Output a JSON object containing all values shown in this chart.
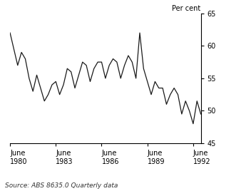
{
  "title": "",
  "ylabel": "Per cent",
  "source": "Source: ABS 8635.0 Quarterly data",
  "ylim": [
    45,
    65
  ],
  "yticks": [
    45,
    50,
    55,
    60,
    65
  ],
  "x_tick_positions": [
    0,
    12,
    24,
    36,
    48
  ],
  "x_tick_labels": [
    "June\n1980",
    "June\n1983",
    "June\n1986",
    "June\n1989",
    "June\n1992"
  ],
  "line_color": "#1a1a1a",
  "line_width": 0.9,
  "background_color": "#ffffff",
  "data": [
    62.0,
    59.5,
    57.0,
    59.0,
    58.0,
    55.0,
    53.0,
    55.5,
    53.5,
    51.5,
    52.5,
    54.0,
    54.5,
    52.5,
    54.0,
    56.5,
    56.0,
    53.5,
    55.5,
    57.5,
    57.0,
    54.5,
    56.5,
    57.5,
    57.5,
    55.0,
    57.0,
    58.0,
    57.5,
    55.0,
    57.0,
    58.5,
    57.5,
    55.0,
    62.0,
    56.5,
    54.5,
    52.5,
    54.5,
    53.5,
    53.5,
    51.0,
    52.5,
    53.5,
    52.5,
    49.5,
    51.5,
    50.0,
    48.0,
    51.5,
    49.5
  ]
}
